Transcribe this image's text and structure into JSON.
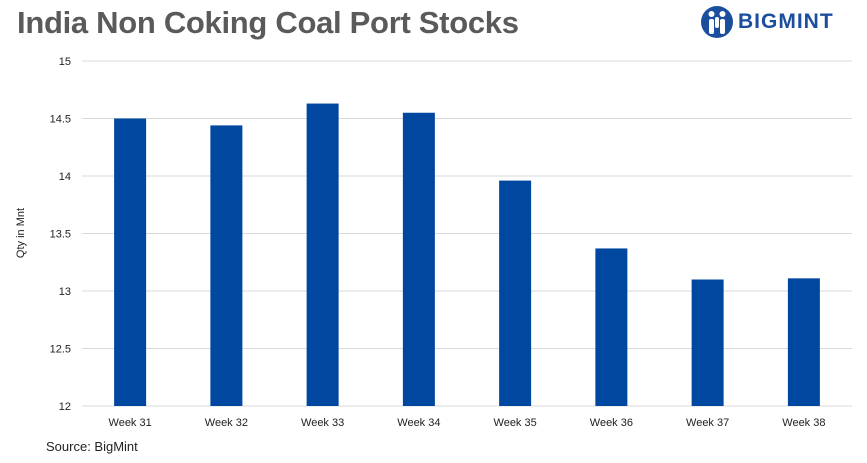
{
  "title": "India Non Coking Coal Port Stocks",
  "logo": {
    "text": "BIGMINT",
    "icon": "bigmint-logo-icon",
    "color": "#1b4f9e"
  },
  "source": "Source:  BigMint",
  "chart_data": {
    "type": "bar",
    "title": "India Non Coking Coal Port Stocks",
    "xlabel": "",
    "ylabel": "Qty in Mnt",
    "categories": [
      "Week 31",
      "Week 32",
      "Week 33",
      "Week 34",
      "Week 35",
      "Week 36",
      "Week 37",
      "Week 38"
    ],
    "series": [
      {
        "values": [
          14.5,
          14.44,
          14.63,
          14.55,
          13.96,
          13.37,
          13.1,
          13.11
        ],
        "color": "#0047a0"
      }
    ],
    "ylim": [
      12,
      15
    ],
    "yticks": [
      "12",
      "12.5",
      "13",
      "13.5",
      "14",
      "14.5",
      "15"
    ],
    "grid": true,
    "legend": "none"
  }
}
